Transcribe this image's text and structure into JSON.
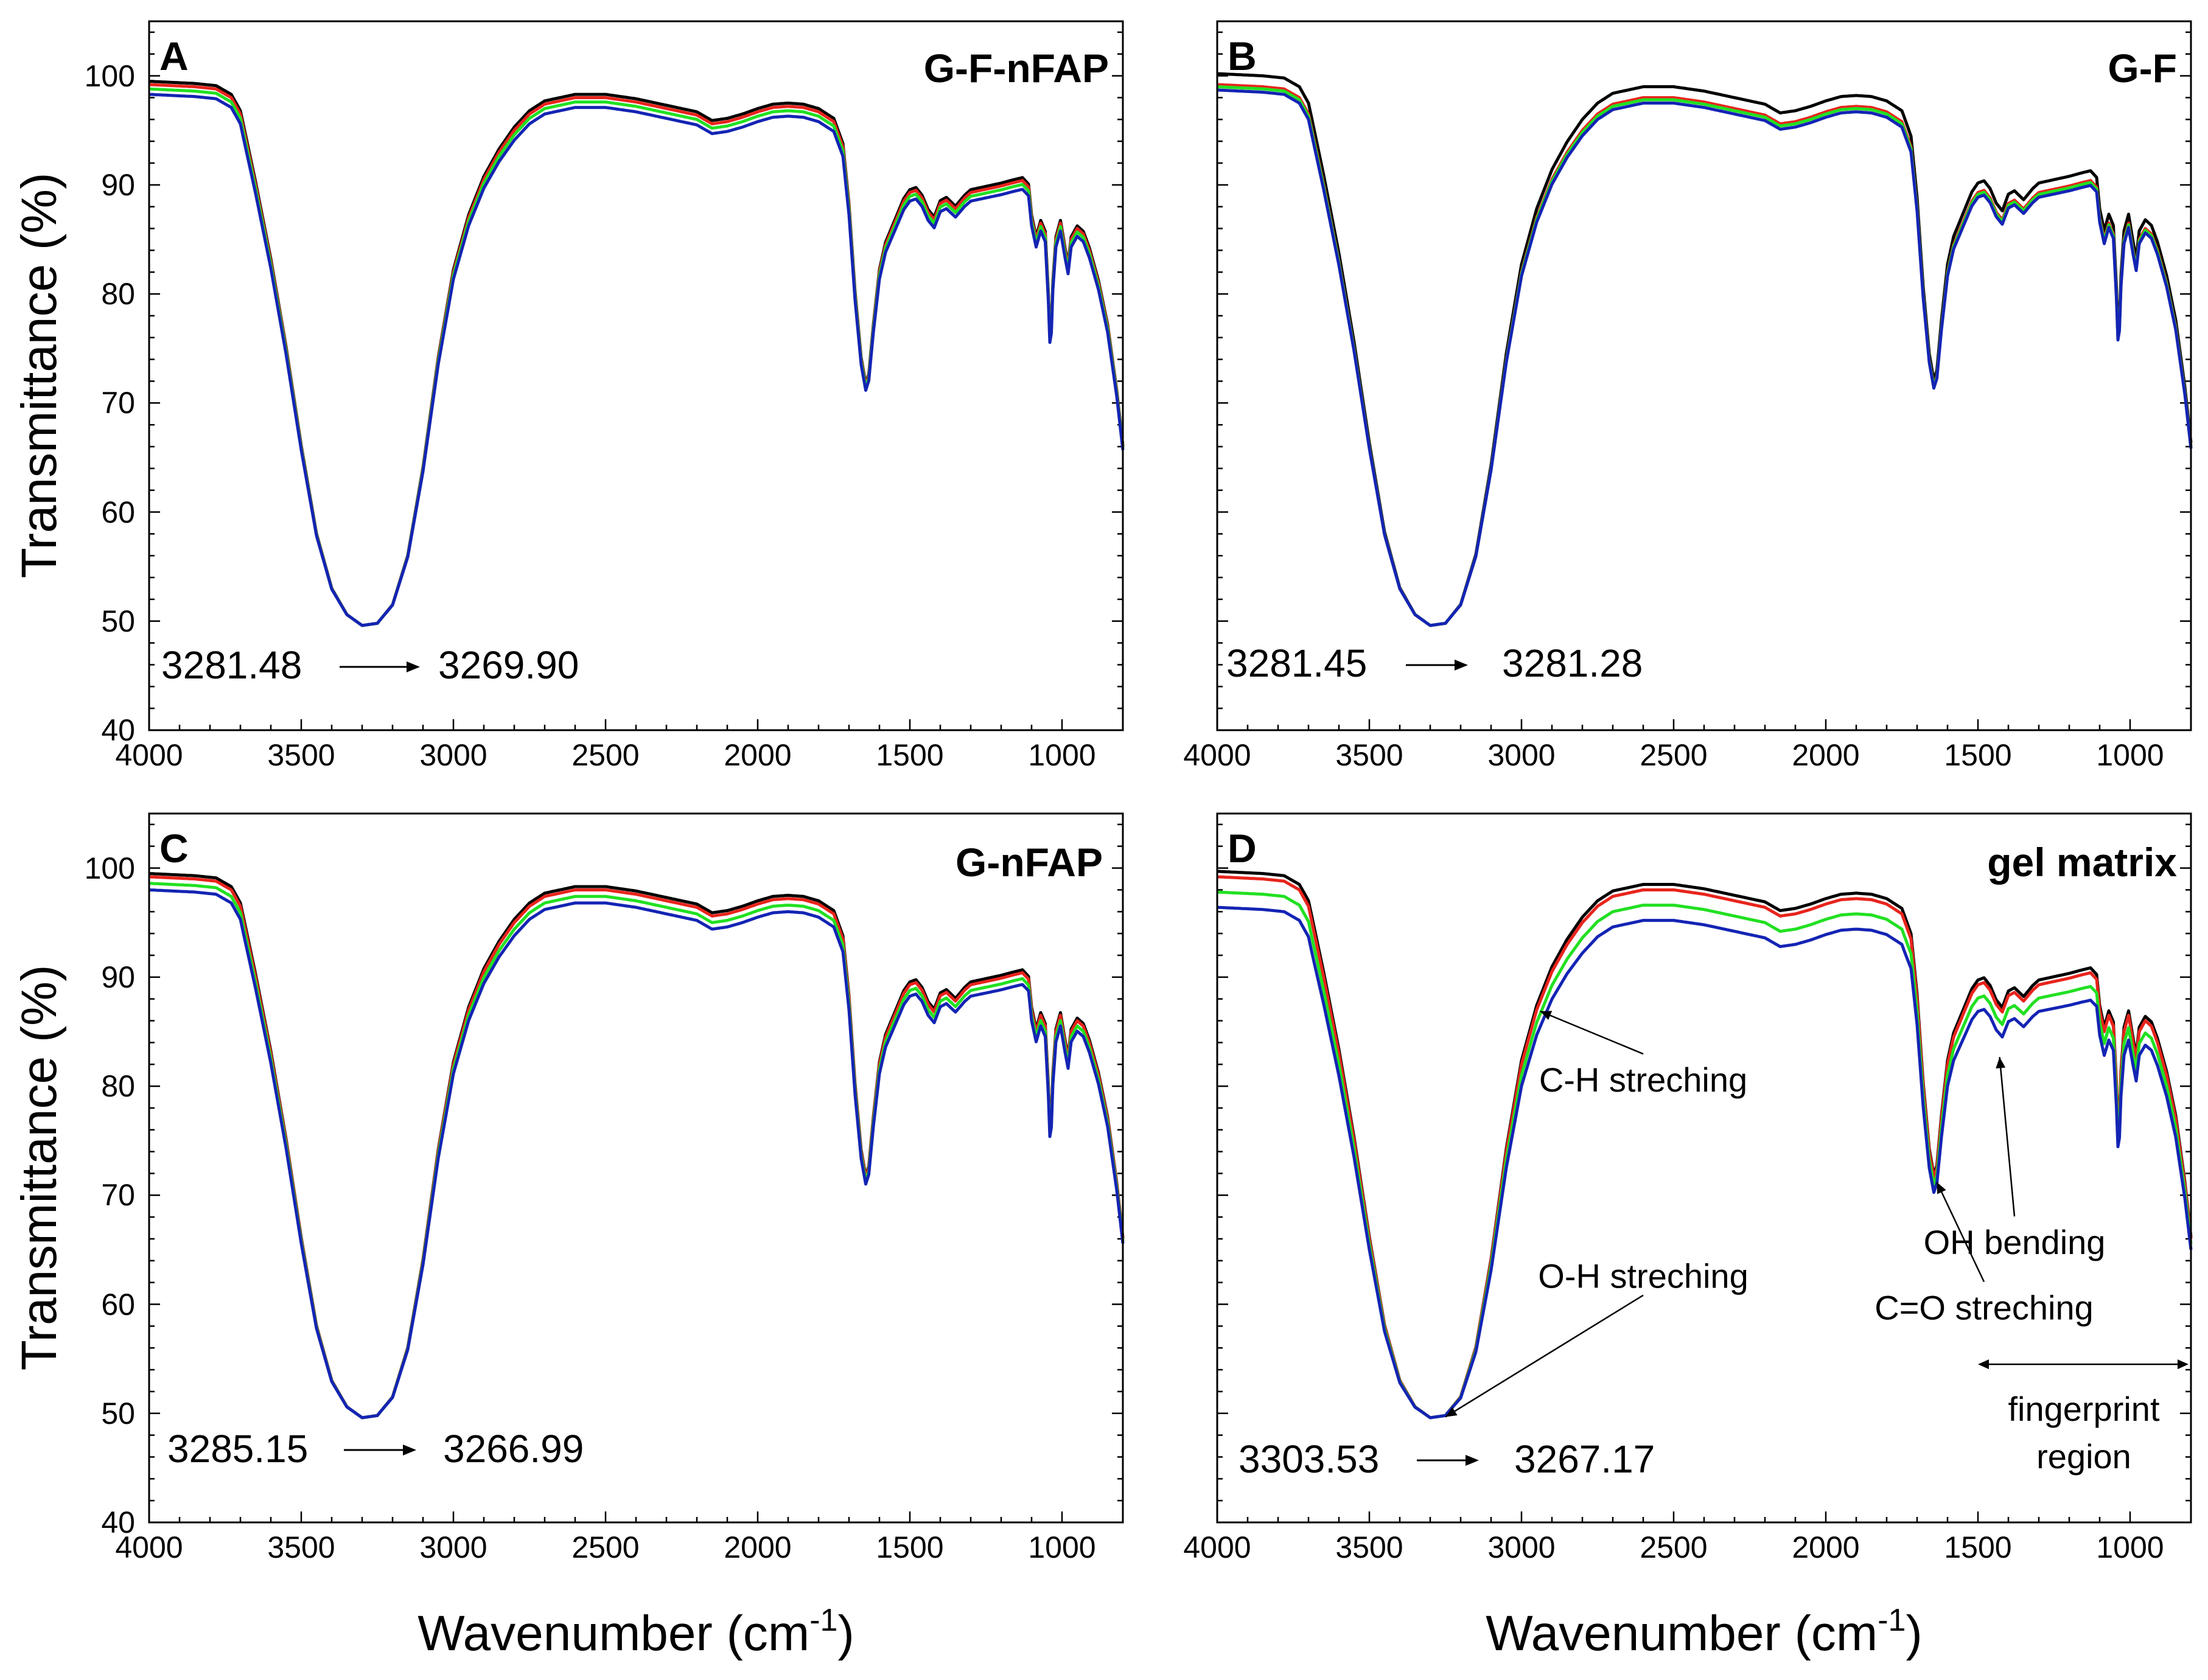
{
  "figure": {
    "x_axis_label_main": "Wavenumber (cm",
    "x_axis_label_sup": "-1",
    "x_axis_label_end": ")",
    "y_axis_label": "Transmittance (%)",
    "series_colors": {
      "black": "#000000",
      "red": "#e8241c",
      "green": "#22e022",
      "blue": "#1424b4"
    }
  },
  "chart_data": [
    {
      "type": "line",
      "panel_letter": "A",
      "title": "G-F-nFAP",
      "xlabel": "Wavenumber (cm-1)",
      "ylabel": "Transmittance (%)",
      "xlim": [
        4000,
        800
      ],
      "ylim": [
        40,
        105
      ],
      "xticks": [
        4000,
        3500,
        3000,
        2500,
        2000,
        1500,
        1000
      ],
      "xtick_labels": [
        "4000",
        "3500",
        "3000",
        "2500",
        "2000",
        "1500",
        "1000"
      ],
      "yticks": [
        40,
        50,
        60,
        70,
        80,
        90,
        100
      ],
      "ytick_labels": [
        "40",
        "50",
        "60",
        "70",
        "80",
        "90",
        "100"
      ],
      "peak_shift": {
        "from": "3281.48",
        "to": "3269.90",
        "from_wn": 3281.48,
        "to_wn": 3269.9
      },
      "series": [
        {
          "name": "black",
          "color": "#000000",
          "offset": 0.3
        },
        {
          "name": "red",
          "color": "#e8241c",
          "offset": 0.0
        },
        {
          "name": "green",
          "color": "#22e022",
          "offset": -0.4
        },
        {
          "name": "blue",
          "color": "#1424b4",
          "offset": -0.9
        }
      ],
      "annotations": []
    },
    {
      "type": "line",
      "panel_letter": "B",
      "title": "G-F",
      "xlabel": "Wavenumber (cm-1)",
      "ylabel": "Transmittance (%)",
      "xlim": [
        4000,
        800
      ],
      "ylim": [
        40,
        105
      ],
      "xticks": [
        4000,
        3500,
        3000,
        2500,
        2000,
        1500,
        1000
      ],
      "xtick_labels": [
        "4000",
        "3500",
        "3000",
        "2500",
        "2000",
        "1500",
        "1000"
      ],
      "yticks": [
        40,
        50,
        60,
        70,
        80,
        90,
        100
      ],
      "ytick_labels": [
        "40",
        "50",
        "60",
        "70",
        "80",
        "90",
        "100"
      ],
      "peak_shift": {
        "from": "3281.45",
        "to": "3281.28",
        "from_wn": 3281.45,
        "to_wn": 3281.28
      },
      "series": [
        {
          "name": "black",
          "color": "#000000",
          "offset": 1.0
        },
        {
          "name": "red",
          "color": "#e8241c",
          "offset": 0.0
        },
        {
          "name": "green",
          "color": "#22e022",
          "offset": -0.2
        },
        {
          "name": "blue",
          "color": "#1424b4",
          "offset": -0.5
        }
      ],
      "annotations": []
    },
    {
      "type": "line",
      "panel_letter": "C",
      "title": "G-nFAP",
      "xlabel": "Wavenumber (cm-1)",
      "ylabel": "Transmittance (%)",
      "xlim": [
        4000,
        800
      ],
      "ylim": [
        40,
        105
      ],
      "xticks": [
        4000,
        3500,
        3000,
        2500,
        2000,
        1500,
        1000
      ],
      "xtick_labels": [
        "4000",
        "3500",
        "3000",
        "2500",
        "2000",
        "1500",
        "1000"
      ],
      "yticks": [
        40,
        50,
        60,
        70,
        80,
        90,
        100
      ],
      "ytick_labels": [
        "40",
        "50",
        "60",
        "70",
        "80",
        "90",
        "100"
      ],
      "peak_shift": {
        "from": "3285.15",
        "to": "3266.99",
        "from_wn": 3285.15,
        "to_wn": 3266.99
      },
      "series": [
        {
          "name": "black",
          "color": "#000000",
          "offset": 0.3
        },
        {
          "name": "red",
          "color": "#e8241c",
          "offset": 0.0
        },
        {
          "name": "green",
          "color": "#22e022",
          "offset": -0.6
        },
        {
          "name": "blue",
          "color": "#1424b4",
          "offset": -1.2
        }
      ],
      "annotations": []
    },
    {
      "type": "line",
      "panel_letter": "D",
      "title": "gel matrix",
      "xlabel": "Wavenumber (cm-1)",
      "ylabel": "Transmittance (%)",
      "xlim": [
        4000,
        800
      ],
      "ylim": [
        40,
        105
      ],
      "xticks": [
        4000,
        3500,
        3000,
        2500,
        2000,
        1500,
        1000
      ],
      "xtick_labels": [
        "4000",
        "3500",
        "3000",
        "2500",
        "2000",
        "1500",
        "1000"
      ],
      "yticks": [
        40,
        50,
        60,
        70,
        80,
        90,
        100
      ],
      "ytick_labels": [
        "40",
        "50",
        "60",
        "70",
        "80",
        "90",
        "100"
      ],
      "peak_shift": {
        "from": "3303.53",
        "to": "3267.17",
        "from_wn": 3303.53,
        "to_wn": 3267.17
      },
      "series": [
        {
          "name": "black",
          "color": "#000000",
          "offset": 0.5
        },
        {
          "name": "red",
          "color": "#e8241c",
          "offset": 0.0
        },
        {
          "name": "green",
          "color": "#22e022",
          "offset": -1.4
        },
        {
          "name": "blue",
          "color": "#1424b4",
          "offset": -2.8
        }
      ],
      "annotations": [
        {
          "name": "c-h-streching",
          "text": "C-H streching",
          "point": [
            2950,
            87
          ],
          "label": [
            2600,
            79.5
          ]
        },
        {
          "name": "o-h-streching",
          "text": "O-H streching",
          "point": [
            3260,
            49.5
          ],
          "label": [
            2600,
            61.5
          ]
        },
        {
          "name": "c-o-streching",
          "text": "C=O streching",
          "point": [
            1640,
            71.5
          ],
          "label": [
            1480,
            58.6
          ]
        },
        {
          "name": "oh-bending",
          "text": "OH bending",
          "point": [
            1430,
            83
          ],
          "label": [
            1380,
            64.6
          ]
        }
      ],
      "region": {
        "text_line1": "fingerprint",
        "text_line2": "region",
        "from_wn": 1500,
        "to_wn": 800,
        "y": 54.5
      }
    }
  ],
  "base_spectrum": [
    [
      4000,
      99.2
    ],
    [
      3850,
      99.0
    ],
    [
      3780,
      98.8
    ],
    [
      3730,
      98.0
    ],
    [
      3700,
      96.5
    ],
    [
      3650,
      90
    ],
    [
      3600,
      83
    ],
    [
      3550,
      75
    ],
    [
      3500,
      66
    ],
    [
      3450,
      58
    ],
    [
      3400,
      53
    ],
    [
      3350,
      50.6
    ],
    [
      3300,
      49.6
    ],
    [
      3250,
      49.8
    ],
    [
      3200,
      51.5
    ],
    [
      3150,
      56
    ],
    [
      3100,
      64
    ],
    [
      3050,
      74
    ],
    [
      3000,
      82
    ],
    [
      2950,
      87
    ],
    [
      2900,
      90.5
    ],
    [
      2850,
      93
    ],
    [
      2800,
      95
    ],
    [
      2750,
      96.5
    ],
    [
      2700,
      97.4
    ],
    [
      2600,
      98.0
    ],
    [
      2500,
      98.0
    ],
    [
      2400,
      97.6
    ],
    [
      2300,
      97
    ],
    [
      2200,
      96.4
    ],
    [
      2150,
      95.6
    ],
    [
      2100,
      95.8
    ],
    [
      2050,
      96.2
    ],
    [
      2000,
      96.7
    ],
    [
      1950,
      97.1
    ],
    [
      1900,
      97.2
    ],
    [
      1850,
      97.1
    ],
    [
      1800,
      96.7
    ],
    [
      1750,
      95.8
    ],
    [
      1720,
      93.5
    ],
    [
      1700,
      88
    ],
    [
      1680,
      80
    ],
    [
      1660,
      74
    ],
    [
      1645,
      71.6
    ],
    [
      1635,
      72.5
    ],
    [
      1620,
      77
    ],
    [
      1600,
      82
    ],
    [
      1580,
      84.5
    ],
    [
      1550,
      86.5
    ],
    [
      1520,
      88.5
    ],
    [
      1500,
      89.3
    ],
    [
      1480,
      89.5
    ],
    [
      1460,
      88.8
    ],
    [
      1440,
      87.5
    ],
    [
      1420,
      86.8
    ],
    [
      1400,
      88.3
    ],
    [
      1380,
      88.6
    ],
    [
      1350,
      87.8
    ],
    [
      1320,
      88.8
    ],
    [
      1300,
      89.3
    ],
    [
      1250,
      89.6
    ],
    [
      1200,
      89.9
    ],
    [
      1160,
      90.2
    ],
    [
      1130,
      90.4
    ],
    [
      1110,
      89.8
    ],
    [
      1100,
      87
    ],
    [
      1085,
      85
    ],
    [
      1070,
      86.5
    ],
    [
      1055,
      85.5
    ],
    [
      1045,
      80
    ],
    [
      1038,
      74.5
    ],
    [
      1030,
      81
    ],
    [
      1020,
      85
    ],
    [
      1005,
      86.5
    ],
    [
      990,
      84
    ],
    [
      980,
      82.5
    ],
    [
      970,
      85
    ],
    [
      950,
      86
    ],
    [
      930,
      85.5
    ],
    [
      910,
      84
    ],
    [
      880,
      81
    ],
    [
      850,
      77
    ],
    [
      820,
      71
    ],
    [
      800,
      66
    ]
  ]
}
